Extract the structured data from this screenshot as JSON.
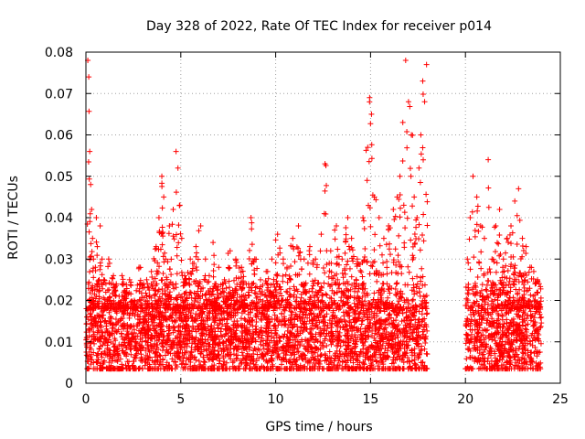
{
  "chart_data": {
    "type": "scatter",
    "title": "Day 328 of 2022, Rate Of TEC Index for receiver p014",
    "xlabel": "GPS time / hours",
    "ylabel": "ROTI / TECUs",
    "xlim": [
      0,
      25
    ],
    "ylim": [
      0,
      0.08
    ],
    "x_ticks": [
      0,
      5,
      10,
      15,
      20,
      25
    ],
    "y_ticks": [
      0,
      0.01,
      0.02,
      0.03,
      0.04,
      0.05,
      0.06,
      0.07,
      0.08
    ],
    "x_tick_labels": [
      "0",
      "5",
      "10",
      "15",
      "20",
      "25"
    ],
    "y_tick_labels": [
      "0",
      "0.01",
      "0.02",
      "0.03",
      "0.04",
      "0.05",
      "0.06",
      "0.07",
      "0.08"
    ],
    "grid": true,
    "legend": "none",
    "marker": "+",
    "color": "#ff0000",
    "data_gap_hours": [
      18.0,
      20.0
    ],
    "series": [
      {
        "x": [
          0.05,
          0.1,
          0.15,
          0.2,
          0.25,
          0.3,
          0.35,
          0.4,
          0.5,
          0.55,
          0.6,
          0.7,
          0.75,
          0.85,
          0.95,
          1.05,
          1.2,
          1.3,
          1.45,
          1.6,
          1.75,
          1.9,
          2.1,
          2.3,
          2.55,
          2.8,
          3.0,
          3.2,
          3.45,
          3.7,
          3.85,
          4.0,
          4.1,
          4.2,
          4.4,
          4.6,
          4.75,
          4.85,
          4.95,
          5.05,
          5.2,
          5.5,
          5.8,
          6.05,
          6.3,
          6.5,
          6.7,
          7.0,
          7.3,
          7.6,
          7.9,
          8.2,
          8.45,
          8.7,
          8.9,
          9.2,
          9.5,
          9.8,
          10.1,
          10.4,
          10.6,
          10.9,
          11.2,
          11.5,
          11.8,
          12.1,
          12.4,
          12.6,
          12.9,
          13.2,
          13.5,
          13.8,
          14.0,
          14.3,
          14.6,
          14.85,
          14.95,
          15.05,
          15.2,
          15.45,
          15.7,
          15.95,
          16.2,
          16.4,
          16.55,
          16.7,
          16.85,
          17.0,
          17.15,
          17.3,
          17.45,
          17.55,
          17.65,
          17.75,
          17.85,
          17.95,
          20.1,
          20.25,
          20.4,
          20.6,
          20.8,
          21.0,
          21.2,
          21.4,
          21.6,
          21.8,
          22.0,
          22.2,
          22.4,
          22.6,
          22.8,
          23.0,
          23.2,
          23.4,
          23.6,
          23.8
        ],
        "y": [
          0.016,
          0.078,
          0.074,
          0.056,
          0.048,
          0.042,
          0.035,
          0.03,
          0.028,
          0.04,
          0.033,
          0.025,
          0.038,
          0.03,
          0.025,
          0.022,
          0.03,
          0.02,
          0.026,
          0.024,
          0.021,
          0.026,
          0.022,
          0.025,
          0.02,
          0.028,
          0.023,
          0.025,
          0.027,
          0.033,
          0.04,
          0.05,
          0.045,
          0.03,
          0.038,
          0.042,
          0.056,
          0.052,
          0.043,
          0.035,
          0.026,
          0.03,
          0.033,
          0.038,
          0.03,
          0.026,
          0.034,
          0.028,
          0.025,
          0.032,
          0.03,
          0.028,
          0.024,
          0.04,
          0.03,
          0.025,
          0.027,
          0.03,
          0.036,
          0.03,
          0.028,
          0.035,
          0.038,
          0.03,
          0.033,
          0.03,
          0.036,
          0.053,
          0.032,
          0.038,
          0.03,
          0.04,
          0.035,
          0.03,
          0.04,
          0.057,
          0.069,
          0.065,
          0.045,
          0.04,
          0.035,
          0.038,
          0.042,
          0.045,
          0.05,
          0.063,
          0.078,
          0.068,
          0.06,
          0.045,
          0.04,
          0.052,
          0.06,
          0.073,
          0.068,
          0.077,
          0.03,
          0.04,
          0.05,
          0.045,
          0.038,
          0.035,
          0.054,
          0.03,
          0.038,
          0.042,
          0.03,
          0.035,
          0.038,
          0.044,
          0.047,
          0.035,
          0.033,
          0.028,
          0.027,
          0.025
        ]
      }
    ]
  }
}
